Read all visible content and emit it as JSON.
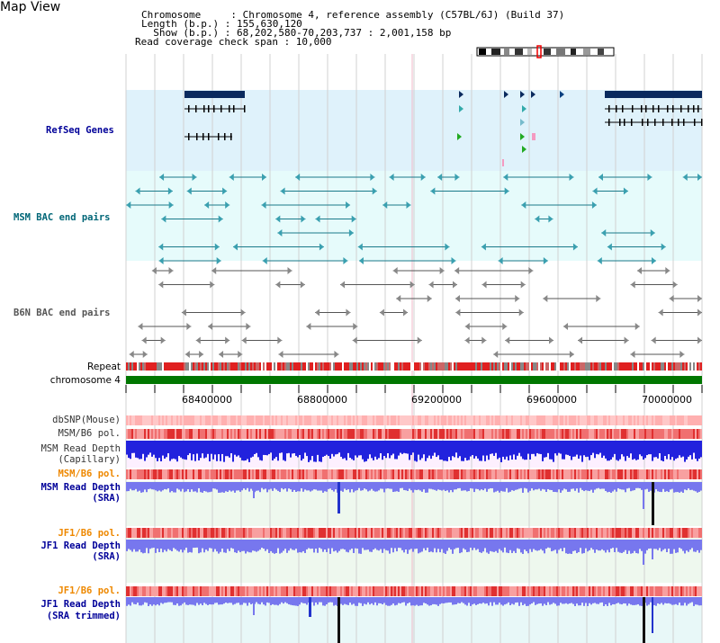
{
  "header": {
    "title": "Map View",
    "info_lines": [
      "Chromosome     : Chromosome 4, reference assembly (C57BL/6J) (Build 37)",
      "Length (b.p.) : 155,630,120",
      "  Show (b.p.) : 68,202,580-70,203,737 : 2,001,158 bp",
      "Read coverage check span : 10,000"
    ]
  },
  "tracks": {
    "refseq": "RefSeq Genes",
    "msm_bac": "MSM BAC end pairs",
    "b6n_bac": "B6N BAC end pairs",
    "repeat": "Repeat",
    "chromosome": "chromosome 4",
    "dbsnp": "dbSNP(Mouse)",
    "msm_b6_pol_1": "MSM/B6 pol.",
    "msm_depth_cap_1": "MSM Read Depth",
    "msm_depth_cap_2": "(Capillary)",
    "msm_b6_pol_2": "MSM/B6 pol.",
    "msm_depth_sra_1": "MSM Read Depth",
    "msm_depth_sra_2": "(SRA)",
    "jf1_b6_pol_1": "JF1/B6 pol.",
    "jf1_depth_sra_1": "JF1 Read Depth",
    "jf1_depth_sra_2": "(SRA)",
    "jf1_b6_pol_2": "JF1/B6 pol.",
    "jf1_depth_trim_1": "JF1 Read Depth",
    "jf1_depth_trim_2": "(SRA trimmed)"
  },
  "axis": {
    "ticks": [
      "68400000",
      "68800000",
      "69200000",
      "69600000",
      "70000000"
    ]
  },
  "colors": {
    "refseq_bg": "#dff2fb",
    "msm_bac_bg": "#e6fbfb",
    "gene_dark": "#0a2a5e",
    "bac_line": "#1a7a8a",
    "b6n_line": "#555555",
    "chromosome_bar": "#007700",
    "depth_blue": "#2222dd",
    "depth_light_blue": "#7777ee",
    "label_navy": "#000099",
    "label_teal": "#006677",
    "label_orange": "#ee8800"
  }
}
